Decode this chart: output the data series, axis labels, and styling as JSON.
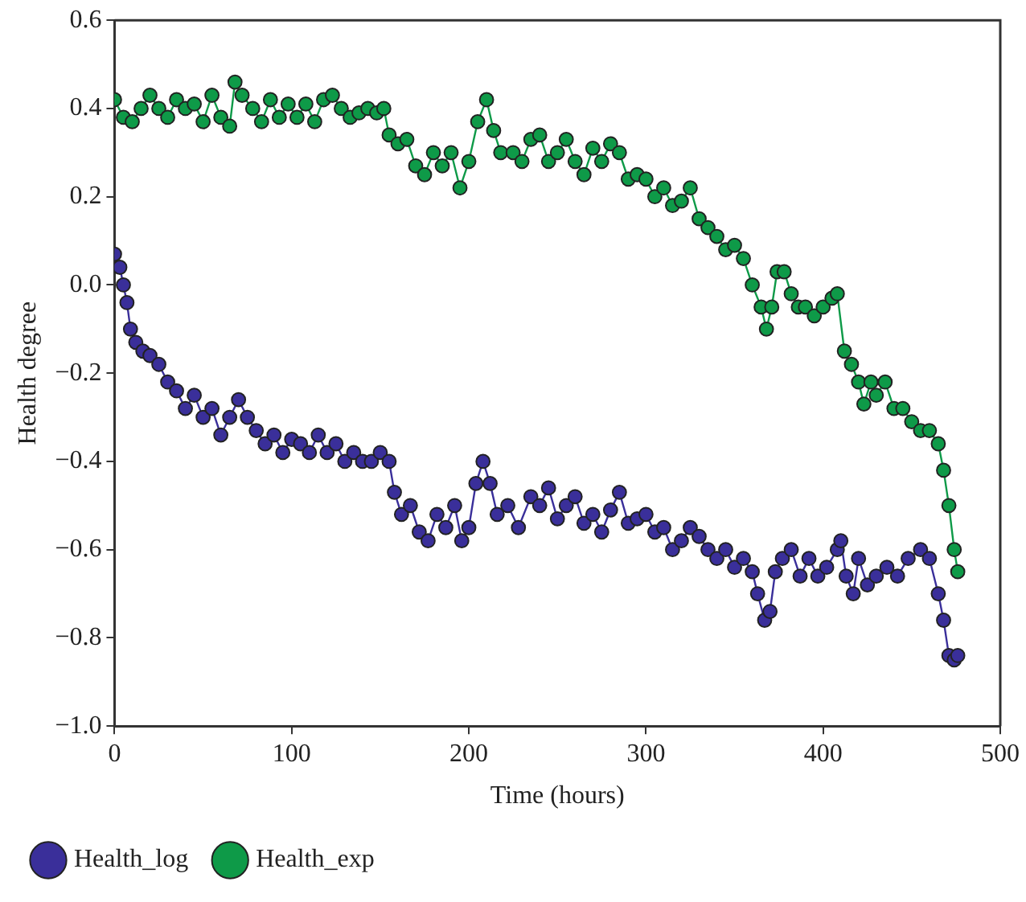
{
  "chart_data": {
    "type": "line",
    "xlabel": "Time (hours)",
    "ylabel": "Health degree",
    "xlim": [
      0,
      500
    ],
    "xticks": [
      0,
      100,
      200,
      300,
      400,
      500
    ],
    "ylim": [
      -1.0,
      0.6
    ],
    "yticks": [
      {
        "value": -1.0,
        "label": "−1.0"
      },
      {
        "value": -0.8,
        "label": "−0.8"
      },
      {
        "value": -0.6,
        "label": "−0.6"
      },
      {
        "value": -0.4,
        "label": "−0.4"
      },
      {
        "value": -0.2,
        "label": "−0.2"
      },
      {
        "value": 0,
        "label": "0.0"
      },
      {
        "value": 0.2,
        "label": "0.2"
      },
      {
        "value": 0.4,
        "label": "0.4"
      },
      {
        "value": 0.6,
        "label": "0.6"
      }
    ],
    "grid": false,
    "legend": "bottom",
    "marker": "circle",
    "line_style": "solid",
    "series": [
      {
        "name": "Health_log",
        "color": "#3a2f9a",
        "x": [
          0,
          3,
          5,
          7,
          9,
          12,
          16,
          20,
          25,
          30,
          35,
          40,
          45,
          50,
          55,
          60,
          65,
          70,
          75,
          80,
          85,
          90,
          95,
          100,
          105,
          110,
          115,
          120,
          125,
          130,
          135,
          140,
          145,
          150,
          155,
          158,
          162,
          167,
          172,
          177,
          182,
          187,
          192,
          196,
          200,
          204,
          208,
          212,
          216,
          222,
          228,
          235,
          240,
          245,
          250,
          255,
          260,
          265,
          270,
          275,
          280,
          285,
          290,
          295,
          300,
          305,
          310,
          315,
          320,
          325,
          330,
          335,
          340,
          345,
          350,
          355,
          360,
          363,
          367,
          370,
          373,
          377,
          382,
          387,
          392,
          397,
          402,
          408,
          410,
          413,
          417,
          420,
          425,
          430,
          436,
          442,
          448,
          455,
          460,
          465,
          468,
          471,
          474,
          476
        ],
        "values": [
          0.07,
          0.04,
          0.0,
          -0.04,
          -0.1,
          -0.13,
          -0.15,
          -0.16,
          -0.18,
          -0.22,
          -0.24,
          -0.28,
          -0.25,
          -0.3,
          -0.28,
          -0.34,
          -0.3,
          -0.26,
          -0.3,
          -0.33,
          -0.36,
          -0.34,
          -0.38,
          -0.35,
          -0.36,
          -0.38,
          -0.34,
          -0.38,
          -0.36,
          -0.4,
          -0.38,
          -0.4,
          -0.4,
          -0.38,
          -0.4,
          -0.47,
          -0.52,
          -0.5,
          -0.56,
          -0.58,
          -0.52,
          -0.55,
          -0.5,
          -0.58,
          -0.55,
          -0.45,
          -0.4,
          -0.45,
          -0.52,
          -0.5,
          -0.55,
          -0.48,
          -0.5,
          -0.46,
          -0.53,
          -0.5,
          -0.48,
          -0.54,
          -0.52,
          -0.56,
          -0.51,
          -0.47,
          -0.54,
          -0.53,
          -0.52,
          -0.56,
          -0.55,
          -0.6,
          -0.58,
          -0.55,
          -0.57,
          -0.6,
          -0.62,
          -0.6,
          -0.64,
          -0.62,
          -0.65,
          -0.7,
          -0.76,
          -0.74,
          -0.65,
          -0.62,
          -0.6,
          -0.66,
          -0.62,
          -0.66,
          -0.64,
          -0.6,
          -0.58,
          -0.66,
          -0.7,
          -0.62,
          -0.68,
          -0.66,
          -0.64,
          -0.66,
          -0.62,
          -0.6,
          -0.62,
          -0.7,
          -0.76,
          -0.84,
          -0.85,
          -0.84
        ]
      },
      {
        "name": "Health_exp",
        "color": "#0e9a48",
        "x": [
          0,
          5,
          10,
          15,
          20,
          25,
          30,
          35,
          40,
          45,
          50,
          55,
          60,
          65,
          68,
          72,
          78,
          83,
          88,
          93,
          98,
          103,
          108,
          113,
          118,
          123,
          128,
          133,
          138,
          143,
          148,
          152,
          155,
          160,
          165,
          170,
          175,
          180,
          185,
          190,
          195,
          200,
          205,
          210,
          214,
          218,
          225,
          230,
          235,
          240,
          245,
          250,
          255,
          260,
          265,
          270,
          275,
          280,
          285,
          290,
          295,
          300,
          305,
          310,
          315,
          320,
          325,
          330,
          335,
          340,
          345,
          350,
          355,
          360,
          365,
          368,
          371,
          374,
          378,
          382,
          386,
          390,
          395,
          400,
          405,
          408,
          412,
          416,
          420,
          423,
          427,
          430,
          435,
          440,
          445,
          450,
          455,
          460,
          465,
          468,
          471,
          474,
          476
        ],
        "values": [
          0.42,
          0.38,
          0.37,
          0.4,
          0.43,
          0.4,
          0.38,
          0.42,
          0.4,
          0.41,
          0.37,
          0.43,
          0.38,
          0.36,
          0.46,
          0.43,
          0.4,
          0.37,
          0.42,
          0.38,
          0.41,
          0.38,
          0.41,
          0.37,
          0.42,
          0.43,
          0.4,
          0.38,
          0.39,
          0.4,
          0.39,
          0.4,
          0.34,
          0.32,
          0.33,
          0.27,
          0.25,
          0.3,
          0.27,
          0.3,
          0.22,
          0.28,
          0.37,
          0.42,
          0.35,
          0.3,
          0.3,
          0.28,
          0.33,
          0.34,
          0.28,
          0.3,
          0.33,
          0.28,
          0.25,
          0.31,
          0.28,
          0.32,
          0.3,
          0.24,
          0.25,
          0.24,
          0.2,
          0.22,
          0.18,
          0.19,
          0.22,
          0.15,
          0.13,
          0.11,
          0.08,
          0.09,
          0.06,
          0.0,
          -0.05,
          -0.1,
          -0.05,
          0.03,
          0.03,
          -0.02,
          -0.05,
          -0.05,
          -0.07,
          -0.05,
          -0.03,
          -0.02,
          -0.15,
          -0.18,
          -0.22,
          -0.27,
          -0.22,
          -0.25,
          -0.22,
          -0.28,
          -0.28,
          -0.31,
          -0.33,
          -0.33,
          -0.36,
          -0.42,
          -0.5,
          -0.6,
          -0.65
        ]
      }
    ]
  }
}
